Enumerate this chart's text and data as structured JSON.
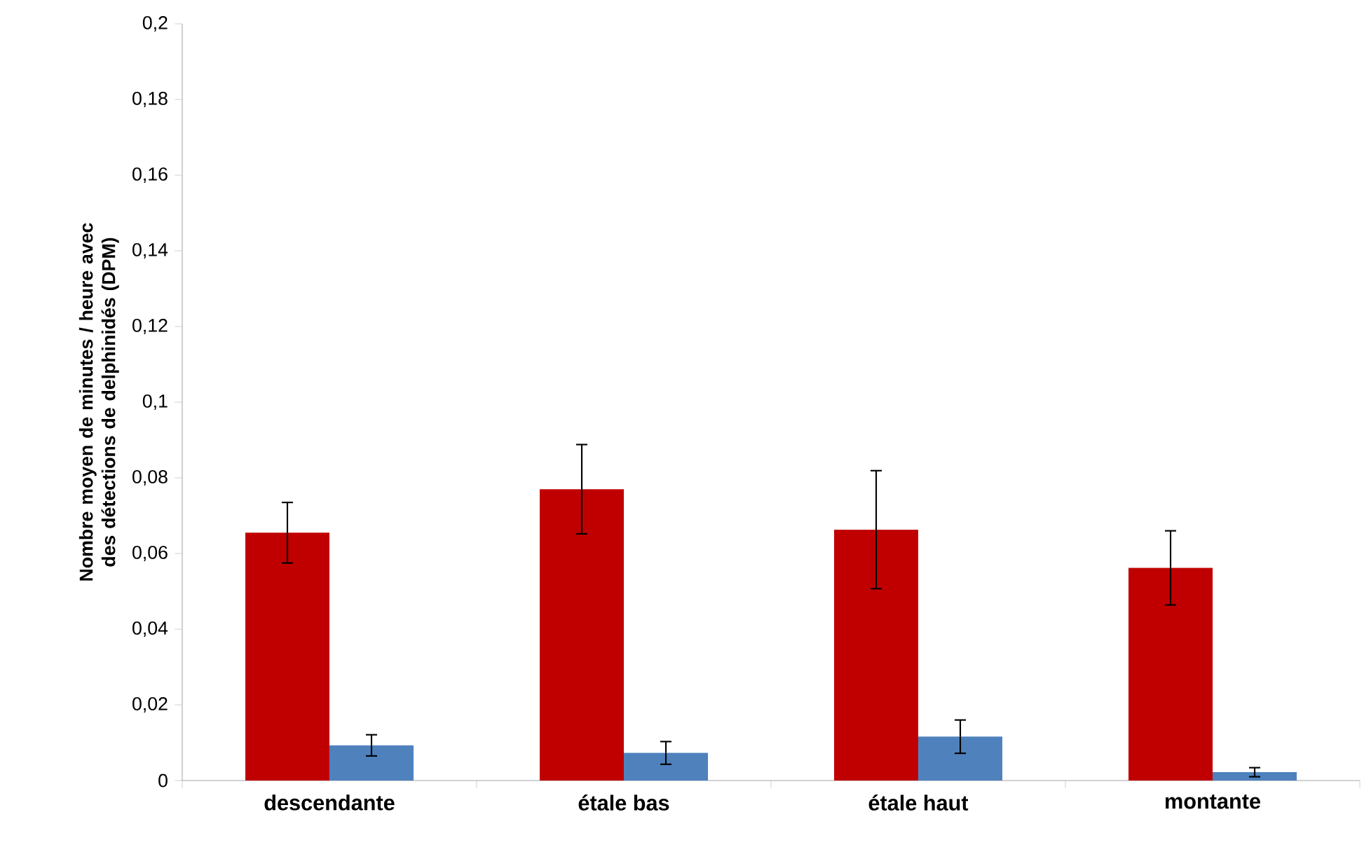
{
  "chart_data": {
    "type": "bar",
    "ylabel": "Nombre moyen de minutes / heure avec des détections de delphinidés (DPM)",
    "categories": [
      "descendante",
      "étale bas",
      "étale haut",
      "montante"
    ],
    "series": [
      {
        "color": "#c00000",
        "values": [
          0.0655,
          0.077,
          0.0663,
          0.0562
        ],
        "errors": [
          0.008,
          0.0118,
          0.0156,
          0.0098
        ]
      },
      {
        "color": "#4f81bd",
        "values": [
          0.0093,
          0.0073,
          0.0116,
          0.0022
        ],
        "errors": [
          0.0028,
          0.003,
          0.0044,
          0.0012
        ]
      }
    ],
    "ylim": [
      0,
      0.2
    ],
    "yticks": [
      0,
      {
        "value": 0.02,
        "label": "0,02"
      },
      {
        "value": 0.04,
        "label": "0,04"
      },
      {
        "value": 0.06,
        "label": "0,06"
      },
      {
        "value": 0.08,
        "label": "0,08"
      },
      {
        "value": 0.1,
        "label": "0,1"
      },
      {
        "value": 0.12,
        "label": "0,12"
      },
      {
        "value": 0.14,
        "label": "0,14"
      },
      {
        "value": 0.16,
        "label": "0,16"
      },
      {
        "value": 0.18,
        "label": "0,18"
      },
      {
        "value": 0.2,
        "label": "0,2"
      }
    ],
    "grid": false
  }
}
